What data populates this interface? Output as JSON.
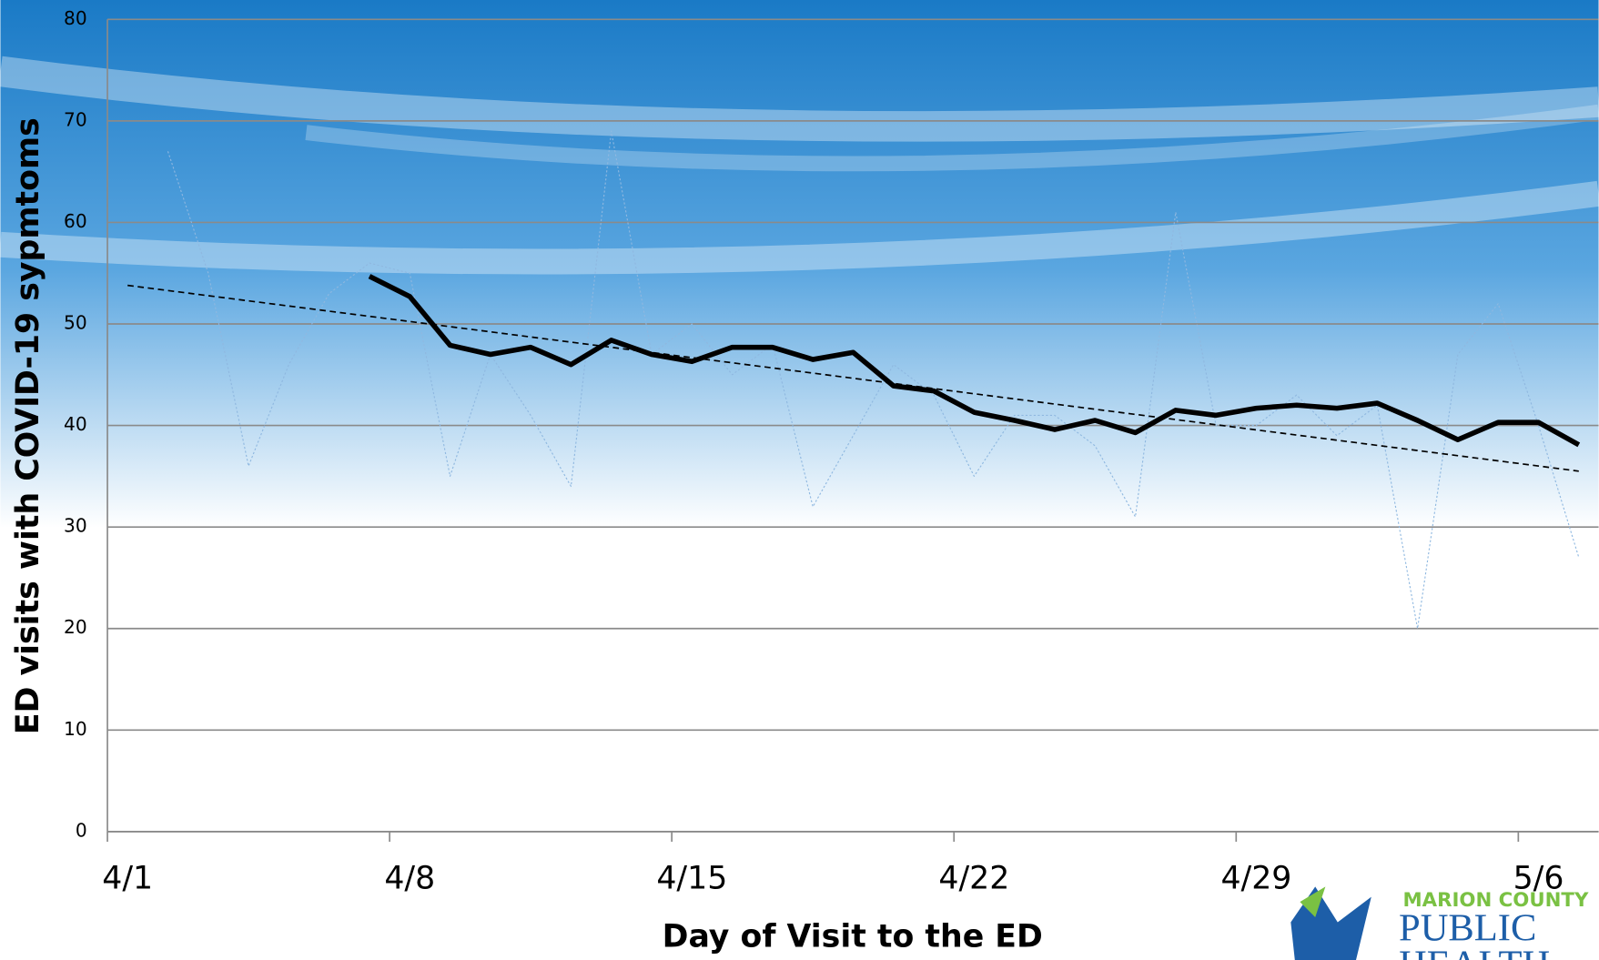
{
  "chart_data": {
    "type": "line",
    "xlabel": "Day of Visit to the ED",
    "ylabel": "ED visits with COVID-19 sypmtoms",
    "categories": [
      "4/1",
      null,
      null,
      null,
      null,
      null,
      null,
      "4/8",
      null,
      null,
      null,
      null,
      null,
      null,
      "4/15",
      null,
      null,
      null,
      null,
      null,
      null,
      "4/22",
      null,
      null,
      null,
      null,
      null,
      null,
      "4/29",
      null,
      null,
      null,
      null,
      null,
      null,
      "5/6",
      null
    ],
    "series": [
      {
        "color": "#8fb8e0",
        "style": "dotted",
        "width": 1,
        "values": [
          null,
          67,
          55,
          36,
          46,
          53,
          56,
          55,
          35,
          47,
          41,
          34,
          69,
          47,
          50,
          45,
          48,
          32,
          39,
          46,
          43,
          35,
          41,
          41,
          38,
          31,
          61,
          40,
          40,
          43,
          39,
          42,
          20,
          47,
          52,
          40,
          27
        ]
      },
      {
        "color": "#000000",
        "style": "solid",
        "width": 5,
        "values": [
          null,
          null,
          null,
          null,
          null,
          null,
          54.7,
          52.7,
          47.9,
          47,
          47.7,
          46,
          48.4,
          47,
          46.3,
          47.7,
          47.7,
          46.5,
          47.2,
          43.9,
          43.4,
          41.3,
          40.5,
          39.6,
          40.5,
          39.3,
          41.5,
          41,
          41.7,
          42,
          41.7,
          42.2,
          40.5,
          38.6,
          40.3,
          40.3,
          38.1
        ]
      }
    ],
    "trendline": {
      "start": 53.8,
      "end": 35.5,
      "color": "#000000"
    },
    "ylim": [
      0,
      80
    ],
    "yticks": [
      0,
      10,
      20,
      30,
      40,
      50,
      60,
      70,
      80
    ],
    "grid": true
  },
  "logo": {
    "line1": "MARION COUNTY",
    "line2": "PUBLIC",
    "line3": "HEALTH"
  }
}
